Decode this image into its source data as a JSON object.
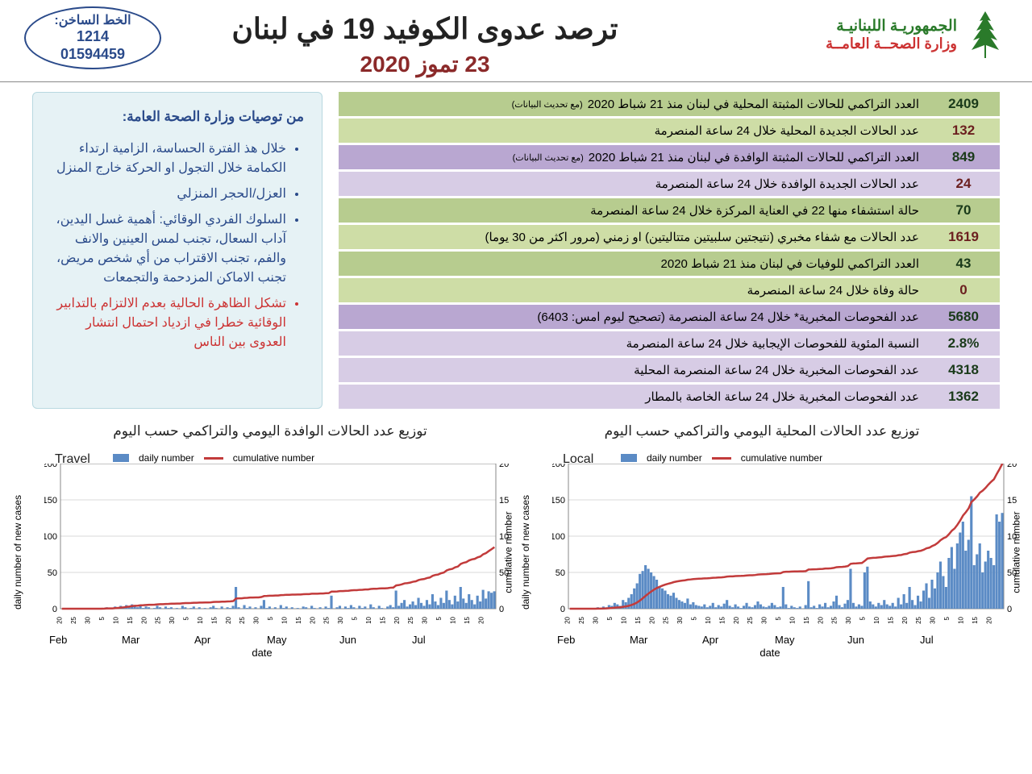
{
  "header": {
    "gov_line1": "الجمهوريـة اللبنانيـة",
    "gov_line2": "وزارة الصحــة العامــة",
    "main_title": "ترصد عدوى الكوفيد 19 في لبنان",
    "date": "23 تموز 2020",
    "hotline_label": "الخط الساخن:",
    "hotline_n1": "1214",
    "hotline_n2": "01594459"
  },
  "colors": {
    "green_d": "#b7cc8f",
    "green_l": "#cedda6",
    "purple_d": "#b9a7d1",
    "purple_l": "#d7cce5",
    "text_dark": "#1a3a1a",
    "text_maroon": "#6b1f1f",
    "bar": "#5b8bc5",
    "line": "#c23b3b",
    "grid": "#d8d8d8",
    "bg": "#ffffff"
  },
  "stats": [
    {
      "value": "2409",
      "label": "العدد التراكمي للحالات المثبتة المحلية في لبنان منذ 21 شباط 2020",
      "sub": "(مع تحديث البيانات)",
      "vbg": "green_d",
      "lbg": "green_d",
      "vcolor": "text_dark"
    },
    {
      "value": "132",
      "label": "عدد الحالات الجديدة المحلية خلال 24 ساعة المنصرمة",
      "vbg": "green_l",
      "lbg": "green_l",
      "vcolor": "text_maroon"
    },
    {
      "value": "849",
      "label": "العدد التراكمي للحالات المثبتة الوافدة في لبنان منذ 21 شباط 2020",
      "sub": "(مع تحديث البيانات)",
      "vbg": "purple_d",
      "lbg": "purple_d",
      "vcolor": "text_dark"
    },
    {
      "value": "24",
      "label": "عدد الحالات الجديدة  الوافدة خلال 24 ساعة المنصرمة",
      "vbg": "purple_l",
      "lbg": "purple_l",
      "vcolor": "text_maroon"
    },
    {
      "value": "70",
      "label": "حالة استشفاء منها 22 في العناية المركزة خلال 24 ساعة المنصرمة",
      "vbg": "green_d",
      "lbg": "green_d",
      "vcolor": "text_dark"
    },
    {
      "value": "1619",
      "label": "عدد الحالات مع شفاء مخبري (نتيجتين سلبيتين متتاليتين) او زمني (مرور اكثر من 30 يوما)",
      "vbg": "green_l",
      "lbg": "green_l",
      "vcolor": "text_maroon"
    },
    {
      "value": "43",
      "label": "العدد التراكمي للوفيات في لبنان منذ 21 شباط  2020",
      "vbg": "green_d",
      "lbg": "green_d",
      "vcolor": "text_dark"
    },
    {
      "value": "0",
      "label": "حالة وفاة خلال 24 ساعة المنصرمة",
      "vbg": "green_l",
      "lbg": "green_l",
      "vcolor": "text_maroon"
    },
    {
      "value": "5680",
      "label": "عدد الفحوصات المخبرية* خلال 24 ساعة المنصرمة  (تصحيح ليوم امس: 6403)",
      "vbg": "purple_d",
      "lbg": "purple_d",
      "vcolor": "text_dark"
    },
    {
      "value": "2.8%",
      "label": "النسبة المئوية للفحوصات الإيجابية خلال 24 ساعة المنصرمة",
      "vbg": "purple_l",
      "lbg": "purple_l",
      "vcolor": "text_dark"
    },
    {
      "value": "4318",
      "label": "عدد الفحوصات المخبرية خلال 24 ساعة المنصرمة المحلية",
      "vbg": "purple_l",
      "lbg": "purple_l",
      "vcolor": "text_dark"
    },
    {
      "value": "1362",
      "label": "عدد الفحوصات المخبرية خلال 24 ساعة الخاصة بالمطار",
      "vbg": "purple_l",
      "lbg": "purple_l",
      "vcolor": "text_dark"
    }
  ],
  "recommendations": {
    "title": "من توصيات وزارة الصحة العامة:",
    "items": [
      {
        "text": "خلال هذ الفترة الحساسة، الزامية ارتداء الكمامة خلال التجول او الحركة خارج المنزل",
        "warn": false
      },
      {
        "text": "العزل/الحجر المنزلي",
        "warn": false
      },
      {
        "text": "السلوك الفردي الوقائي: أهمية غسل اليدين، آداب السعال، تجنب لمس العينين والانف والفم، تجنب الاقتراب من أي شخص مريض، تجنب الاماكن المزدحمة والتجمعات",
        "warn": false
      },
      {
        "text": "تشكل الظاهرة الحالية بعدم الالتزام بالتدابير الوقائية خطرا في ازدياد احتمال انتشار العدوى بين الناس",
        "warn": true
      }
    ]
  },
  "charts_section": {
    "title_local": "توزيع عدد الحالات المحلية اليومي والتراكمي حسب اليوم",
    "title_travel": "توزيع عدد الحالات الوافدة اليومي والتراكمي حسب اليوم",
    "y_left_label": "daily number of new cases",
    "y_right_label": "cumulative number",
    "x_label": "date",
    "legend_daily": "daily number",
    "legend_cum": "cumulative number",
    "months": [
      "Feb",
      "Mar",
      "Apr",
      "May",
      "Jun",
      "Jul"
    ],
    "y_left": {
      "min": 0,
      "max": 200,
      "step": 50
    },
    "y_right": {
      "min": 0,
      "max": 2000,
      "step": 500
    },
    "n_days": 155
  },
  "chart_local": {
    "inset": "Local",
    "daily": [
      0,
      0,
      0,
      0,
      0,
      0,
      0,
      0,
      1,
      0,
      2,
      0,
      3,
      2,
      5,
      4,
      8,
      6,
      4,
      12,
      9,
      15,
      20,
      28,
      35,
      48,
      52,
      60,
      55,
      50,
      45,
      40,
      30,
      28,
      25,
      20,
      18,
      22,
      15,
      12,
      10,
      8,
      14,
      6,
      9,
      5,
      4,
      3,
      6,
      2,
      4,
      8,
      2,
      5,
      3,
      7,
      12,
      4,
      2,
      6,
      3,
      1,
      4,
      8,
      3,
      2,
      5,
      10,
      6,
      3,
      2,
      4,
      8,
      5,
      2,
      3,
      30,
      6,
      1,
      4,
      2,
      1,
      3,
      0,
      5,
      38,
      2,
      4,
      1,
      6,
      3,
      8,
      2,
      4,
      10,
      18,
      5,
      2,
      7,
      12,
      55,
      8,
      3,
      6,
      4,
      50,
      58,
      10,
      6,
      3,
      8,
      5,
      12,
      6,
      4,
      8,
      3,
      15,
      6,
      20,
      8,
      30,
      12,
      5,
      18,
      10,
      25,
      35,
      15,
      40,
      28,
      50,
      65,
      45,
      30,
      70,
      85,
      55,
      90,
      105,
      120,
      80,
      95,
      155,
      60,
      75,
      90,
      50,
      65,
      80,
      70,
      60,
      130,
      120,
      132
    ],
    "cum_final": 2000
  },
  "chart_travel": {
    "inset": "Travel",
    "daily": [
      0,
      0,
      0,
      0,
      0,
      0,
      0,
      0,
      0,
      0,
      0,
      0,
      0,
      0,
      0,
      1,
      2,
      1,
      0,
      3,
      2,
      4,
      3,
      5,
      4,
      6,
      3,
      2,
      4,
      1,
      3,
      2,
      0,
      1,
      4,
      2,
      0,
      3,
      1,
      2,
      0,
      1,
      0,
      4,
      2,
      0,
      1,
      3,
      0,
      2,
      0,
      1,
      0,
      2,
      4,
      1,
      0,
      3,
      0,
      2,
      1,
      4,
      30,
      2,
      0,
      5,
      1,
      3,
      0,
      2,
      0,
      4,
      12,
      1,
      3,
      0,
      2,
      0,
      5,
      1,
      3,
      0,
      2,
      0,
      1,
      0,
      3,
      2,
      0,
      4,
      1,
      0,
      2,
      0,
      3,
      1,
      18,
      0,
      2,
      4,
      0,
      3,
      1,
      5,
      2,
      0,
      4,
      1,
      3,
      0,
      6,
      2,
      0,
      4,
      1,
      0,
      3,
      5,
      2,
      25,
      4,
      8,
      12,
      3,
      6,
      10,
      5,
      15,
      8,
      4,
      12,
      6,
      20,
      10,
      5,
      15,
      8,
      25,
      12,
      6,
      18,
      10,
      30,
      14,
      8,
      20,
      12,
      6,
      18,
      10,
      26,
      14,
      24,
      22,
      24
    ],
    "cum_final": 849
  }
}
